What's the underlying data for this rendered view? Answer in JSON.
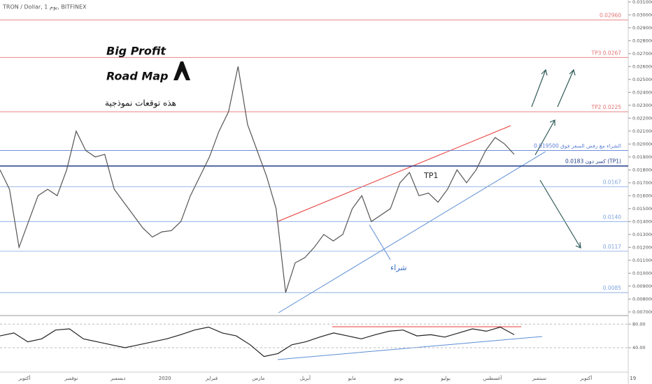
{
  "chart_data": [
    {
      "type": "line",
      "title": "TRON / Dollar, 1 يوم, BITFINEX",
      "color": "#555555",
      "values": [
        0.018,
        0.0165,
        0.012,
        0.014,
        0.016,
        0.0165,
        0.016,
        0.018,
        0.021,
        0.0195,
        0.019,
        0.0192,
        0.0165,
        0.0155,
        0.0145,
        0.0135,
        0.0128,
        0.0132,
        0.0133,
        0.014,
        0.016,
        0.0175,
        0.019,
        0.021,
        0.0225,
        0.026,
        0.0215,
        0.0195,
        0.0175,
        0.015,
        0.0085,
        0.0108,
        0.0112,
        0.012,
        0.013,
        0.0125,
        0.013,
        0.015,
        0.016,
        0.014,
        0.0145,
        0.015,
        0.017,
        0.0178,
        0.016,
        0.0162,
        0.0155,
        0.0165,
        0.018,
        0.017,
        0.018,
        0.0195,
        0.0205,
        0.02,
        0.0192
      ],
      "ylim": [
        0.00672,
        0.03115
      ],
      "yticks": [
        {
          "value": 0.007,
          "label": "0.007000"
        },
        {
          "value": 0.008,
          "label": "0.008000"
        },
        {
          "value": 0.009,
          "label": "0.009000"
        },
        {
          "value": 0.01,
          "label": "0.010000"
        },
        {
          "value": 0.011,
          "label": "0.011000"
        },
        {
          "value": 0.012,
          "label": "0.012000"
        },
        {
          "value": 0.013,
          "label": "0.013000"
        },
        {
          "value": 0.014,
          "label": "0.014000"
        },
        {
          "value": 0.015,
          "label": "0.015000"
        },
        {
          "value": 0.016,
          "label": "0.016000"
        },
        {
          "value": 0.017,
          "label": "0.017000"
        },
        {
          "value": 0.018,
          "label": "0.018000"
        },
        {
          "value": 0.019,
          "label": "0.019000"
        },
        {
          "value": 0.02,
          "label": "0.020000"
        },
        {
          "value": 0.021,
          "label": "0.021000"
        },
        {
          "value": 0.022,
          "label": "0.022000"
        },
        {
          "value": 0.023,
          "label": "0.023000"
        },
        {
          "value": 0.024,
          "label": "0.024000"
        },
        {
          "value": 0.025,
          "label": "0.025000"
        },
        {
          "value": 0.026,
          "label": "0.026000"
        },
        {
          "value": 0.027,
          "label": "0.027000"
        },
        {
          "value": 0.028,
          "label": "0.028000"
        },
        {
          "value": 0.029,
          "label": "0.029000"
        },
        {
          "value": 0.03,
          "label": "0.030000"
        },
        {
          "value": 0.031,
          "label": "0.031000"
        }
      ],
      "levels": [
        {
          "value": 0.0296,
          "label": "0.02960",
          "color": "#e57373"
        },
        {
          "value": 0.0267,
          "label": "TP3 0.0267",
          "color": "#e57373"
        },
        {
          "value": 0.0225,
          "label": "TP2 0.0225",
          "color": "#e57373"
        },
        {
          "value": 0.0195,
          "label": "الشراء مع رفض السعر فوق 0.019500",
          "color": "#5b7fd6"
        },
        {
          "value": 0.0183,
          "label": "كسر دون 0.0183 (TP1)",
          "color": "#1f3c88"
        },
        {
          "value": 0.0167,
          "label": "0.0167",
          "color": "#7ea3dd"
        },
        {
          "value": 0.014,
          "label": "0.0140",
          "color": "#7ea3dd"
        },
        {
          "value": 0.0117,
          "label": "0.0117",
          "color": "#7ea3dd"
        },
        {
          "value": 0.0085,
          "label": "0.0085",
          "color": "#7ea3dd"
        }
      ],
      "xticks": [
        "أكتوبر",
        "نوفمبر",
        "ديسمبر",
        "2020",
        "فبراير",
        "مارس",
        "أبريل",
        "مايو",
        "يونيو",
        "يوليو",
        "أغسطس",
        "سبتمبر",
        "أكتوبر",
        "19"
      ],
      "annotations": {
        "headline1": "Big Profit",
        "headline2": "Road Map",
        "subtitle": "هذه توقعات نموذجية",
        "tp1": "TP1",
        "buy": "شراء"
      }
    },
    {
      "type": "line",
      "color": "#222222",
      "values": [
        60,
        65,
        50,
        55,
        70,
        72,
        55,
        50,
        45,
        40,
        45,
        50,
        55,
        62,
        70,
        75,
        65,
        60,
        45,
        25,
        30,
        45,
        50,
        58,
        65,
        60,
        55,
        62,
        68,
        70,
        60,
        62,
        58,
        65,
        72,
        68,
        75,
        62
      ],
      "ylim": [
        2,
        91
      ],
      "yticks": [
        {
          "value": 40,
          "label": "40.00"
        },
        {
          "value": 80,
          "label": "80.00"
        }
      ],
      "resistance": 78
    }
  ]
}
